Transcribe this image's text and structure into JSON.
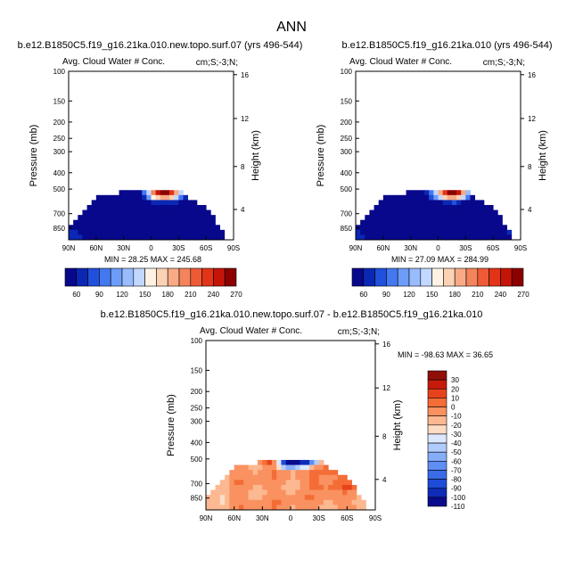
{
  "main_title": "ANN",
  "diff_title": "b.e12.B1850C5.f19_g16.21ka.010.new.topo.surf.07 - b.e12.B1850C5.f19_g16.21ka.010",
  "colors": {
    "abs": [
      "#08088c",
      "#0a28b4",
      "#2050dc",
      "#4478f0",
      "#6c9cf8",
      "#98bcfc",
      "#c2d8ff",
      "#fff2e4",
      "#fcd2b4",
      "#f8aa86",
      "#f4845c",
      "#ee5a36",
      "#e23418",
      "#c41508",
      "#8c0000"
    ],
    "diff": [
      "#0a0a8c",
      "#0e2cb8",
      "#1e4cd8",
      "#3a6ce8",
      "#5e8ef4",
      "#86adf8",
      "#b0ccfc",
      "#dce8ff",
      "#fddcc6",
      "#fcb890",
      "#f99260",
      "#f46c36",
      "#e8421c",
      "#c81a0c",
      "#901008"
    ]
  },
  "chart_data": [
    {
      "type": "heatmap",
      "title": "b.e12.B1850C5.f19_g16.21ka.010.new.topo.surf.07 (yrs 496-544)",
      "subtitle_left": "Avg. Cloud Water # Conc.",
      "subtitle_right": "cm;S;-3;N;",
      "ylabel": "Pressure (mb)",
      "ylabel_right": "Height (km)",
      "x_ticks": [
        "90N",
        "60N",
        "30N",
        "0",
        "30S",
        "60S",
        "90S"
      ],
      "y_ticks": [
        "100",
        "150",
        "200",
        "250",
        "300",
        "400",
        "500",
        "700",
        "850"
      ],
      "height_ticks": [
        "16",
        "12",
        "8",
        "4"
      ],
      "stats": "MIN =  28.25   MAX = 245.68",
      "colorbar_labels": [
        "60",
        "90",
        "120",
        "150",
        "180",
        "210",
        "240",
        "270"
      ],
      "data_extent_pressure_mb": [
        500,
        1000
      ]
    },
    {
      "type": "heatmap",
      "title": "b.e12.B1850C5.f19_g16.21ka.010 (yrs 496-544)",
      "subtitle_left": "Avg. Cloud Water # Conc.",
      "subtitle_right": "cm;S;-3;N;",
      "ylabel": "Pressure (mb)",
      "ylabel_right": "Height (km)",
      "x_ticks": [
        "90N",
        "60N",
        "30N",
        "0",
        "30S",
        "60S",
        "90S"
      ],
      "y_ticks": [
        "100",
        "150",
        "200",
        "250",
        "300",
        "400",
        "500",
        "700",
        "850"
      ],
      "height_ticks": [
        "16",
        "12",
        "8",
        "4"
      ],
      "stats": "MIN =  27.09   MAX = 284.99",
      "colorbar_labels": [
        "60",
        "90",
        "120",
        "150",
        "180",
        "210",
        "240",
        "270"
      ],
      "data_extent_pressure_mb": [
        500,
        1000
      ]
    },
    {
      "type": "heatmap",
      "title": "",
      "subtitle_left": "Avg. Cloud Water # Conc.",
      "subtitle_right": "cm;S;-3;N;",
      "ylabel": "Pressure (mb)",
      "ylabel_right": "Height (km)",
      "x_ticks": [
        "90N",
        "60N",
        "30N",
        "0",
        "30S",
        "60S",
        "90S"
      ],
      "y_ticks": [
        "100",
        "150",
        "200",
        "250",
        "300",
        "400",
        "500",
        "700",
        "850"
      ],
      "height_ticks": [
        "16",
        "12",
        "8",
        "4"
      ],
      "stats": "MIN = -98.63   MAX =  36.65",
      "colorbar_labels": [
        "30",
        "20",
        "10",
        "0",
        "-10",
        "-20",
        "-30",
        "-40",
        "-50",
        "-60",
        "-70",
        "-80",
        "-90",
        "-100",
        "-110"
      ],
      "data_extent_pressure_mb": [
        500,
        1000
      ]
    }
  ]
}
